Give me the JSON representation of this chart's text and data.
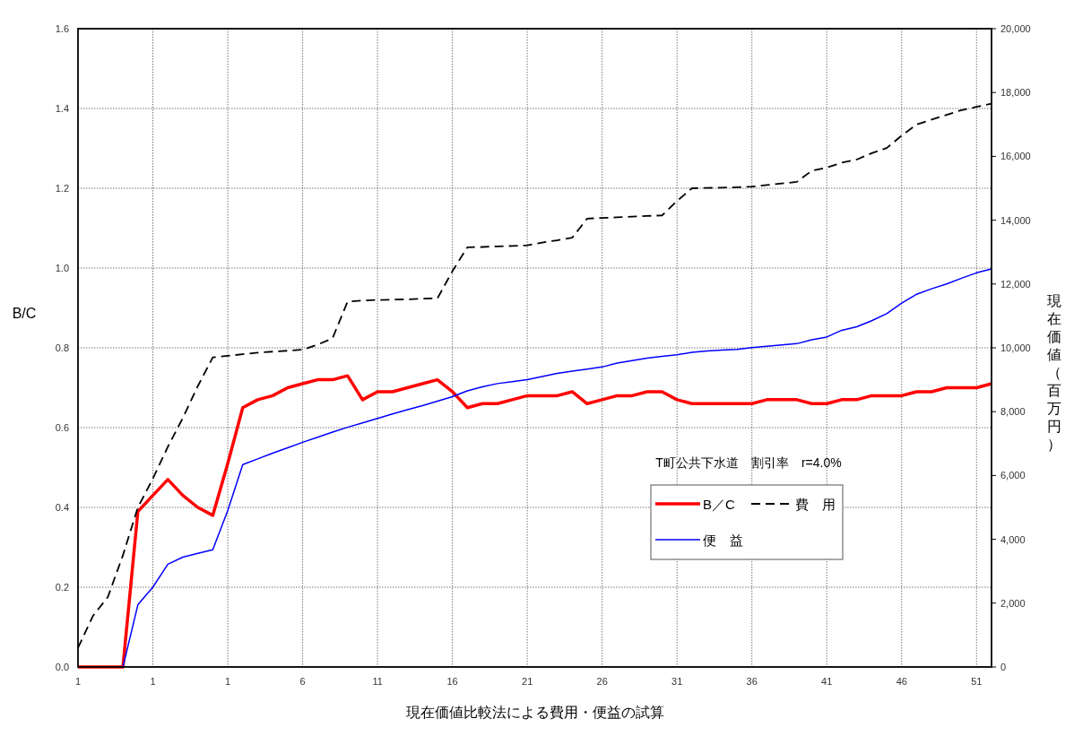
{
  "chart_data": {
    "type": "line",
    "xlabel": "現在価値比較法による費用・便益の試算",
    "ylabel": "B/C",
    "y2label": "現在価値（百万円）",
    "annotations": [
      "T町公共下水道　割引率　r=4.0%"
    ],
    "categories": [
      "1",
      null,
      null,
      null,
      null,
      "1",
      null,
      null,
      null,
      null,
      "1",
      null,
      null,
      null,
      null,
      "6",
      null,
      null,
      null,
      null,
      "11",
      null,
      null,
      null,
      null,
      "16",
      null,
      null,
      null,
      null,
      "21",
      null,
      null,
      null,
      null,
      "26",
      null,
      null,
      null,
      null,
      "31",
      null,
      null,
      null,
      null,
      "36",
      null,
      null,
      null,
      null,
      "41",
      null,
      null,
      null,
      null,
      "46",
      null,
      null,
      null,
      null,
      "51",
      null
    ],
    "ylim": [
      0,
      1.6
    ],
    "yticks": [
      {
        "value": 0,
        "label": "0.0"
      },
      {
        "value": 0.2,
        "label": "0.2"
      },
      {
        "value": 0.4,
        "label": "0.4"
      },
      {
        "value": 0.6,
        "label": "0.6"
      },
      {
        "value": 0.8,
        "label": "0.8"
      },
      {
        "value": 1,
        "label": "1.0"
      },
      {
        "value": 1.2,
        "label": "1.2"
      },
      {
        "value": 1.4,
        "label": "1.4"
      },
      {
        "value": 1.6,
        "label": "1.6"
      }
    ],
    "y2lim": [
      0,
      20000
    ],
    "y2ticks": [
      0,
      {
        "value": 2000,
        "label": "2,000"
      },
      {
        "value": 4000,
        "label": "4,000"
      },
      {
        "value": 6000,
        "label": "6,000"
      },
      {
        "value": 8000,
        "label": "8,000"
      },
      {
        "value": 10000,
        "label": "10,000"
      },
      {
        "value": 12000,
        "label": "12,000"
      },
      {
        "value": 14000,
        "label": "14,000"
      },
      {
        "value": 16000,
        "label": "16,000"
      },
      {
        "value": 18000,
        "label": "18,000"
      },
      {
        "value": 20000,
        "label": "20,000"
      }
    ],
    "grid": true,
    "legend": "bottom right",
    "series": [
      {
        "name": "B／C",
        "color": "#ff0000",
        "values": [
          0,
          0,
          0,
          0,
          0.39,
          0.43,
          0.47,
          0.43,
          0.4,
          0.38,
          0.51,
          0.65,
          0.67,
          0.68,
          0.7,
          0.71,
          0.72,
          0.72,
          0.73,
          0.67,
          0.69,
          0.69,
          0.7,
          0.71,
          0.72,
          0.69,
          0.65,
          0.66,
          0.66,
          0.67,
          0.68,
          0.68,
          0.68,
          0.69,
          0.66,
          0.67,
          0.68,
          0.68,
          0.69,
          0.69,
          0.67,
          0.66,
          0.66,
          0.66,
          0.66,
          0.66,
          0.67,
          0.67,
          0.67,
          0.66,
          0.66,
          0.67,
          0.67,
          0.68,
          0.68,
          0.68,
          0.69,
          0.69,
          0.7,
          0.7,
          0.7,
          0.71
        ]
      },
      {
        "name": "費　用",
        "color": "#000000",
        "axis": "y2",
        "line_style": "dashed",
        "values": [
          600,
          1600,
          2200,
          3500,
          5000,
          5900,
          6900,
          7800,
          8800,
          9700,
          9750,
          9800,
          9850,
          9880,
          9910,
          9940,
          10100,
          10300,
          11450,
          11480,
          11500,
          11510,
          11520,
          11540,
          11550,
          12400,
          13150,
          13160,
          13180,
          13190,
          13210,
          13300,
          13370,
          13450,
          14050,
          14070,
          14090,
          14110,
          14130,
          14150,
          14600,
          15000,
          15010,
          15020,
          15030,
          15050,
          15100,
          15150,
          15200,
          15550,
          15650,
          15800,
          15900,
          16100,
          16260,
          16650,
          17000,
          17150,
          17300,
          17450,
          17550,
          17650
        ]
      },
      {
        "name": "便　益",
        "color": "#0000ff",
        "axis": "y2",
        "values": [
          null,
          null,
          null,
          0,
          1950,
          2500,
          3220,
          3440,
          3560,
          3670,
          4900,
          6340,
          6520,
          6700,
          6870,
          7040,
          7200,
          7360,
          7510,
          7650,
          7790,
          7930,
          8060,
          8190,
          8330,
          8470,
          8650,
          8780,
          8880,
          8940,
          9000,
          9100,
          9200,
          9270,
          9330,
          9400,
          9520,
          9600,
          9680,
          9730,
          9780,
          9860,
          9900,
          9930,
          9950,
          10010,
          10050,
          10090,
          10130,
          10250,
          10340,
          10550,
          10660,
          10850,
          11070,
          11400,
          11680,
          11850,
          12000,
          12180,
          12350,
          12470
        ]
      }
    ]
  }
}
